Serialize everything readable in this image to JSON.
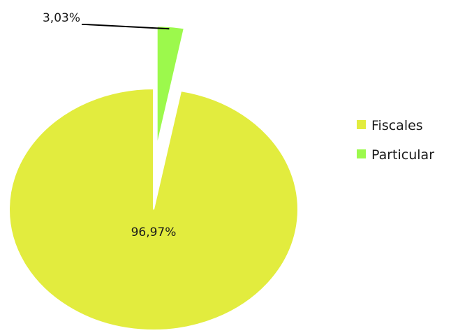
{
  "chart_data": {
    "type": "pie",
    "title": "",
    "categories": [
      "Fiscales",
      "Particular"
    ],
    "values": [
      96.97,
      3.03
    ],
    "data_labels": [
      "96,97%",
      "3,03%"
    ],
    "colors": [
      "#e2ec3e",
      "#9cf94c"
    ],
    "exploded": [
      false,
      true
    ],
    "legend": {
      "placement": "right",
      "entries": [
        "Fiscales",
        "Particular"
      ]
    }
  }
}
